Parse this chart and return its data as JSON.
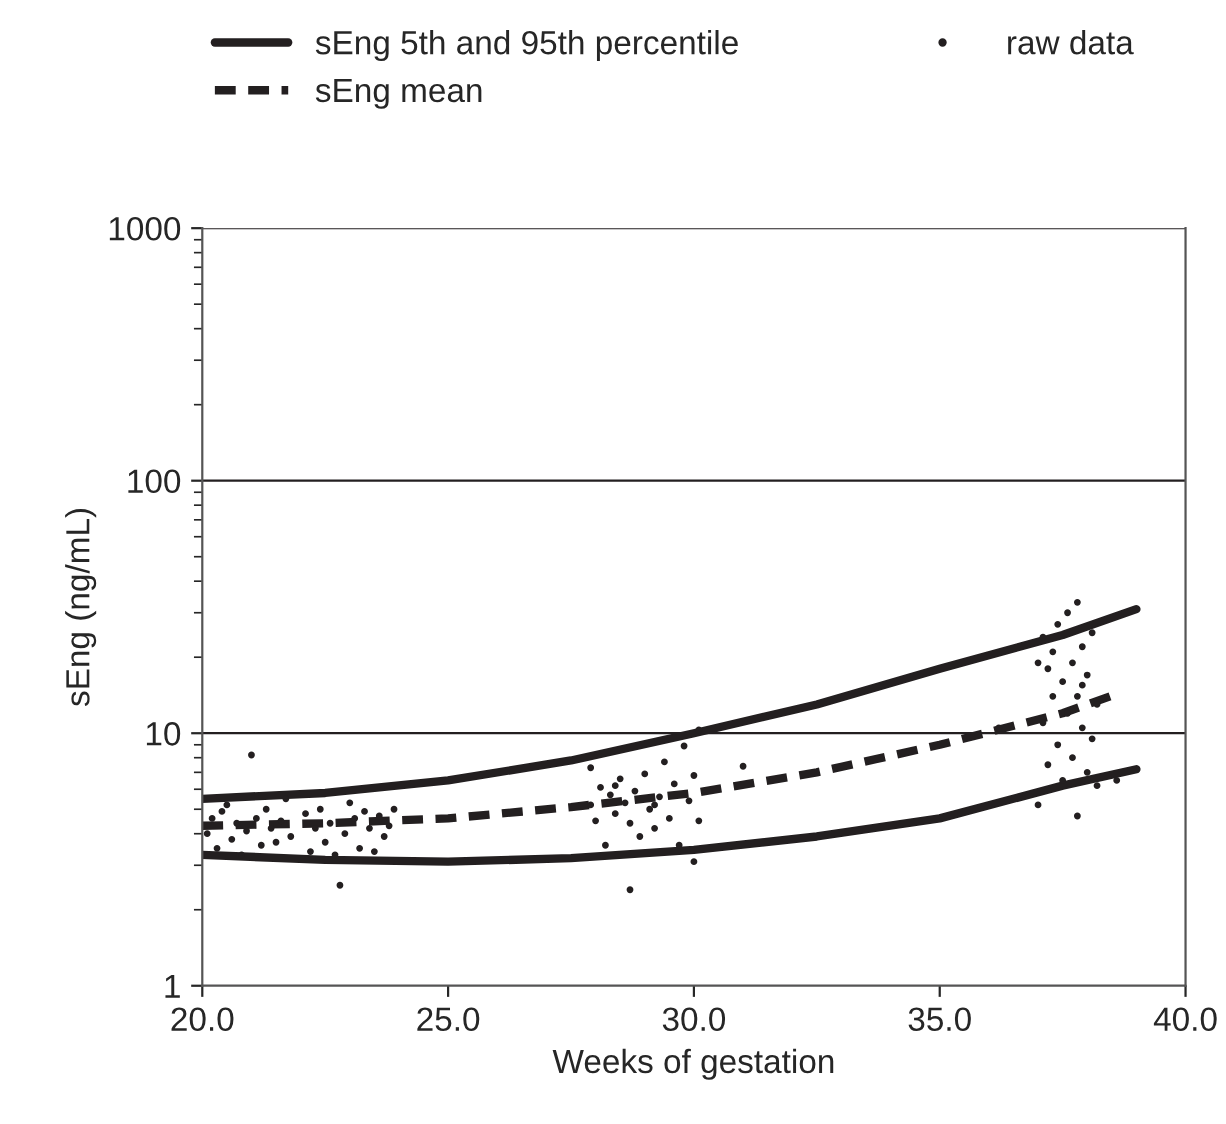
{
  "chart_data": {
    "type": "line",
    "xlabel": "Weeks of gestation",
    "ylabel": "sEng (ng/mL)",
    "log": "y",
    "xlim": [
      20,
      40
    ],
    "xticks": [
      {
        "value": 20,
        "label": "20.0"
      },
      {
        "value": 25,
        "label": "25.0"
      },
      {
        "value": 30,
        "label": "30.0"
      },
      {
        "value": 35,
        "label": "35.0"
      },
      {
        "value": 40,
        "label": "40.0"
      }
    ],
    "ylim": [
      1,
      1000
    ],
    "yticks": [
      1,
      10,
      100,
      1000
    ],
    "grid": "y",
    "legend": "top",
    "series": [
      {
        "name": "sEng 5th and 95th percentile",
        "line_style": "solid",
        "color": "#231f20",
        "x": [
          20,
          22.5,
          25,
          27.5,
          30,
          32.5,
          35,
          37.5,
          39
        ],
        "values": [
          5.5,
          5.8,
          6.5,
          7.8,
          10,
          13,
          18,
          24.5,
          31
        ]
      },
      {
        "line_style": "solid",
        "color": "#231f20",
        "x": [
          20,
          22.5,
          25,
          27.5,
          30,
          32.5,
          35,
          37.5,
          39
        ],
        "values": [
          3.3,
          3.15,
          3.1,
          3.2,
          3.45,
          3.9,
          4.6,
          6.2,
          7.2
        ]
      },
      {
        "name": "sEng mean",
        "line_style": "dashed",
        "color": "#231f20",
        "x": [
          20,
          22.5,
          25,
          27.5,
          30,
          32.5,
          35,
          37.5,
          38.6
        ],
        "values": [
          4.3,
          4.4,
          4.6,
          5.1,
          5.8,
          7.0,
          9.0,
          12,
          14.3
        ]
      },
      {
        "name": "raw data",
        "type": "scatter",
        "marker": "circle",
        "color": "#231f20",
        "x": [
          20.1,
          20.2,
          20.3,
          20.4,
          20.5,
          20.6,
          20.7,
          20.8,
          20.9,
          21.0,
          21.1,
          21.2,
          21.3,
          21.4,
          21.5,
          21.6,
          21.7,
          21.8,
          22.1,
          22.2,
          22.3,
          22.4,
          22.5,
          22.6,
          22.7,
          22.8,
          22.9,
          23.0,
          23.1,
          23.2,
          23.3,
          23.4,
          23.5,
          23.6,
          23.7,
          23.8,
          23.9,
          27.9,
          27.9,
          28.0,
          28.1,
          28.2,
          28.3,
          28.4,
          28.5,
          28.6,
          28.7,
          28.7,
          28.8,
          28.9,
          29.0,
          29.1,
          29.2,
          29.3,
          29.4,
          29.5,
          29.6,
          29.7,
          29.8,
          29.9,
          30.0,
          30.1,
          30.0,
          29.2,
          28.4,
          30.1,
          31.0,
          37.0,
          37.1,
          37.1,
          37.2,
          37.2,
          37.3,
          37.3,
          37.4,
          37.5,
          37.5,
          37.6,
          37.6,
          37.7,
          37.7,
          37.8,
          37.8,
          37.8,
          37.9,
          37.9,
          38.0,
          38.0,
          38.1,
          38.1,
          38.2,
          38.2,
          37.4,
          37.9,
          38.6,
          36.2,
          37.0
        ],
        "values": [
          4.0,
          4.6,
          3.5,
          4.9,
          5.2,
          3.8,
          4.4,
          3.3,
          4.1,
          8.2,
          4.6,
          3.6,
          5.0,
          4.2,
          3.7,
          4.5,
          5.5,
          3.9,
          4.8,
          3.4,
          4.2,
          5.0,
          3.7,
          4.4,
          3.3,
          2.5,
          4.0,
          5.3,
          4.6,
          3.5,
          4.9,
          4.2,
          3.4,
          4.7,
          3.9,
          4.3,
          5.0,
          5.2,
          7.3,
          4.5,
          6.1,
          3.6,
          5.7,
          4.8,
          6.6,
          5.3,
          2.4,
          4.4,
          5.9,
          3.9,
          6.9,
          5.0,
          4.2,
          5.6,
          7.7,
          4.6,
          6.3,
          3.6,
          8.9,
          5.4,
          6.8,
          10.3,
          3.1,
          5.2,
          6.2,
          4.5,
          7.4,
          5.2,
          24,
          11,
          18,
          7.5,
          14,
          21,
          9.0,
          16,
          6.5,
          30,
          12,
          19,
          8.0,
          33,
          14,
          4.7,
          22,
          10.5,
          17,
          7.0,
          25,
          9.5,
          13,
          6.2,
          27,
          15.5,
          6.5,
          10.5,
          19
        ]
      }
    ]
  }
}
